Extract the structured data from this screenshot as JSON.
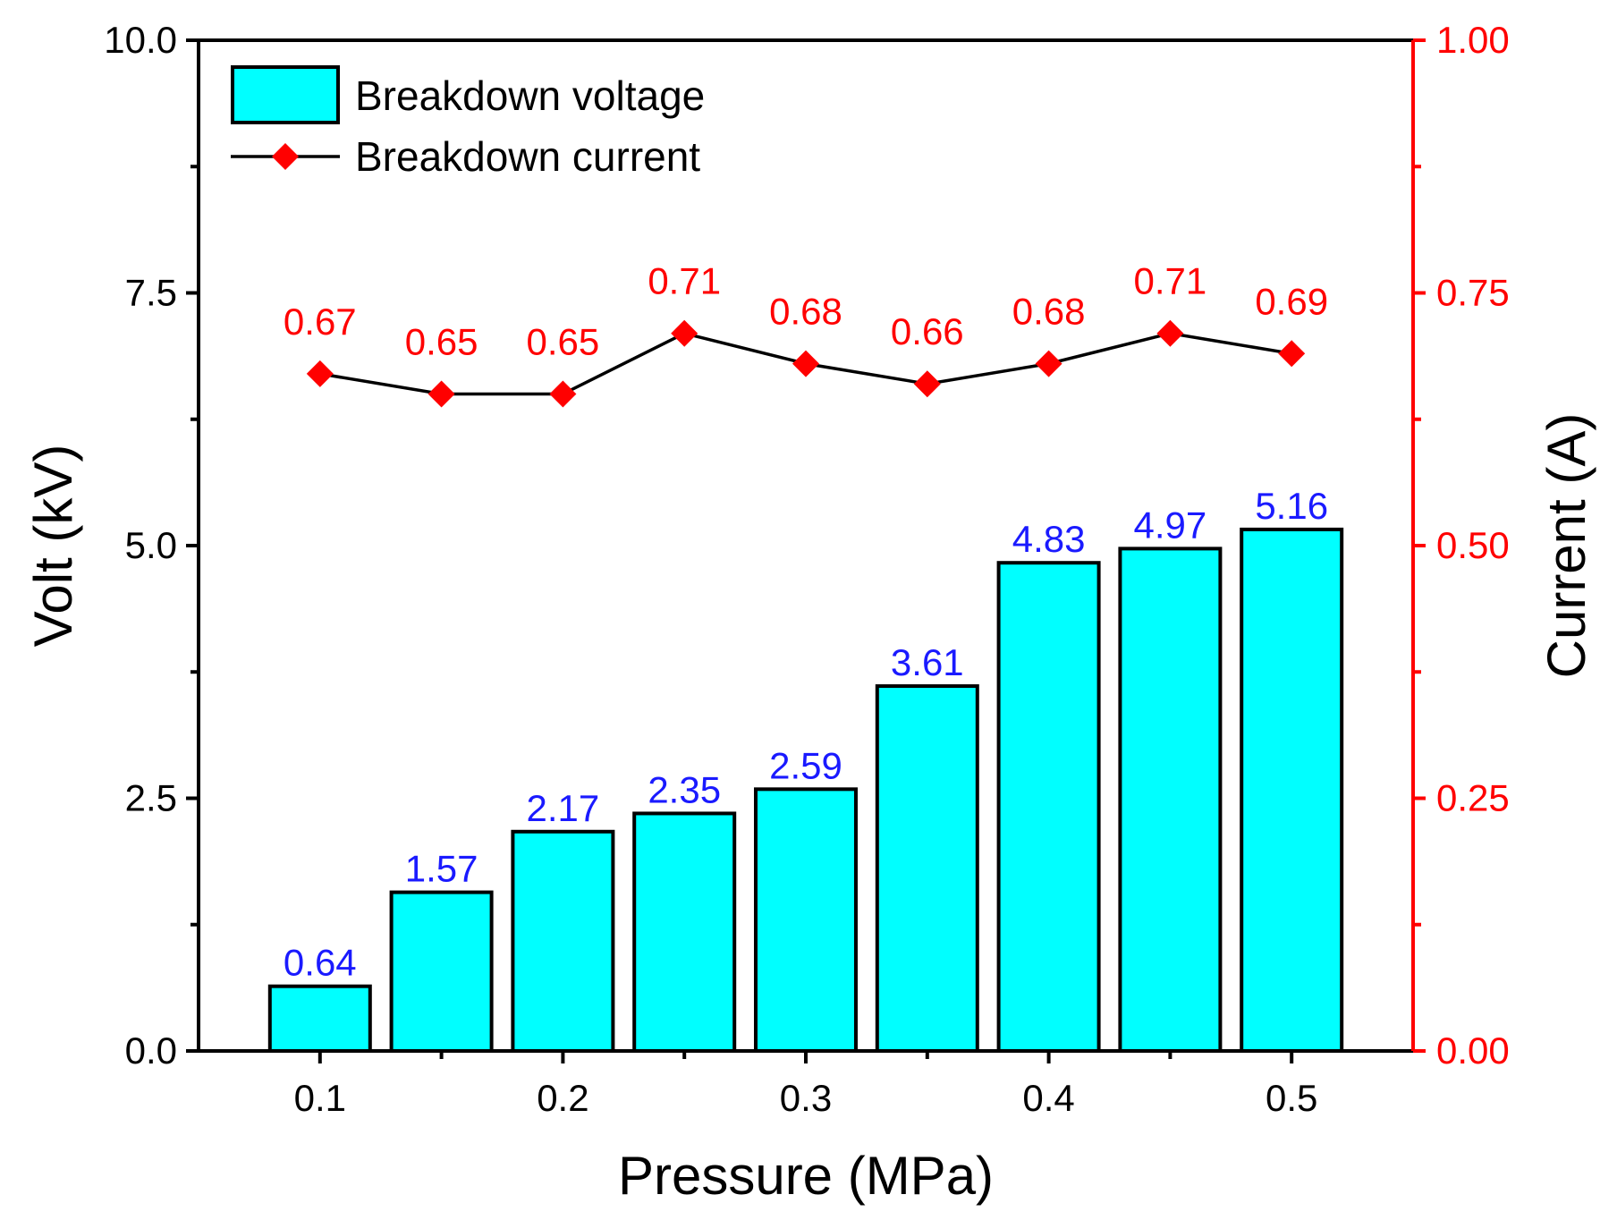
{
  "chart_data": {
    "type": "bar",
    "x": [
      0.1,
      0.15,
      0.2,
      0.25,
      0.3,
      0.35,
      0.4,
      0.45,
      0.5
    ],
    "xticks": [
      "0.1",
      "0.2",
      "0.3",
      "0.4",
      "0.5"
    ],
    "xtick_values": [
      0.1,
      0.2,
      0.3,
      0.4,
      0.5
    ],
    "xlim": [
      0.05,
      0.55
    ],
    "xlabel": "Pressure (MPa)",
    "ylabel": "Volt (kV)",
    "ylim": [
      0,
      10
    ],
    "yticks": [
      "0.0",
      "2.5",
      "5.0",
      "7.5",
      "10.0"
    ],
    "ytick_values": [
      0,
      2.5,
      5,
      7.5,
      10
    ],
    "y2label": "Current (A)",
    "y2lim": [
      0,
      1
    ],
    "y2ticks": [
      "0.00",
      "0.25",
      "0.50",
      "0.75",
      "1.00"
    ],
    "y2tick_values": [
      0,
      0.25,
      0.5,
      0.75,
      1
    ],
    "legend_position": "top-left",
    "grid": false,
    "series": [
      {
        "name": "Breakdown voltage",
        "type": "bar",
        "axis": "left",
        "values": [
          0.64,
          1.57,
          2.17,
          2.35,
          2.59,
          3.61,
          4.83,
          4.97,
          5.16
        ],
        "labels": [
          "0.64",
          "1.57",
          "2.17",
          "2.35",
          "2.59",
          "3.61",
          "4.83",
          "4.97",
          "5.16"
        ],
        "color": "#00ffff",
        "label_color": "#1a1aff"
      },
      {
        "name": "Breakdown current",
        "type": "line",
        "axis": "right",
        "values": [
          0.67,
          0.65,
          0.65,
          0.71,
          0.68,
          0.66,
          0.68,
          0.71,
          0.69
        ],
        "labels": [
          "0.67",
          "0.65",
          "0.65",
          "0.71",
          "0.68",
          "0.66",
          "0.68",
          "0.71",
          "0.69"
        ],
        "line_color": "#000000",
        "marker": "diamond",
        "marker_color": "#ff0000",
        "label_color": "#ff0000"
      }
    ],
    "right_axis_color": "#ff0000"
  }
}
